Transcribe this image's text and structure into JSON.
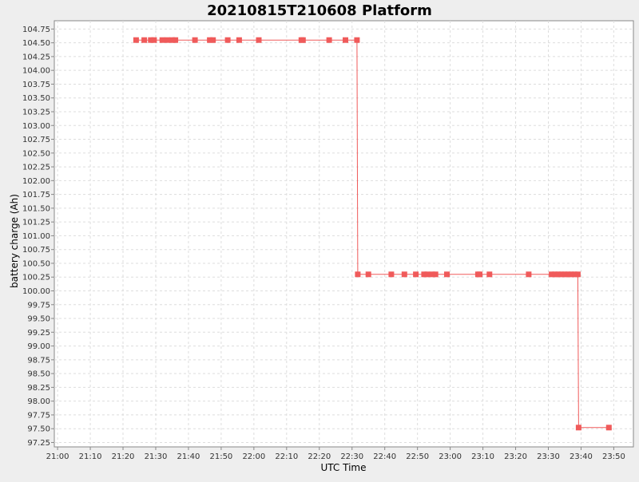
{
  "chart_data": {
    "type": "line",
    "title": "20210815T210608 Platform",
    "xlabel": "UTC Time",
    "ylabel": "battery charge (Ah)",
    "x_ticks": [
      "21:00",
      "21:10",
      "21:20",
      "21:30",
      "21:40",
      "21:50",
      "22:00",
      "22:10",
      "22:20",
      "22:30",
      "22:40",
      "22:50",
      "23:00",
      "23:10",
      "23:20",
      "23:30",
      "23:40",
      "23:50"
    ],
    "y_ticks": [
      "97.25",
      "97.50",
      "97.75",
      "98.00",
      "98.25",
      "98.50",
      "98.75",
      "99.00",
      "99.25",
      "99.50",
      "99.75",
      "100.00",
      "100.25",
      "100.50",
      "100.75",
      "101.00",
      "101.25",
      "101.50",
      "101.75",
      "102.00",
      "102.25",
      "102.50",
      "102.75",
      "103.00",
      "103.25",
      "103.50",
      "103.75",
      "104.00",
      "104.25",
      "104.50",
      "104.75"
    ],
    "xlim": [
      "20:59",
      "23:56"
    ],
    "ylim": [
      97.17,
      104.9
    ],
    "grid": true,
    "series": [
      {
        "name": "",
        "color": "#f05a5a",
        "points": [
          [
            "21:24",
            104.55
          ],
          [
            "21:26:30",
            104.55
          ],
          [
            "21:28:30",
            104.55
          ],
          [
            "21:29:30",
            104.55
          ],
          [
            "21:32",
            104.55
          ],
          [
            "21:33:30",
            104.55
          ],
          [
            "21:35",
            104.55
          ],
          [
            "21:36",
            104.55
          ],
          [
            "21:42",
            104.55
          ],
          [
            "21:46:30",
            104.55
          ],
          [
            "21:47:30",
            104.55
          ],
          [
            "21:52",
            104.55
          ],
          [
            "21:55:30",
            104.55
          ],
          [
            "22:01:30",
            104.55
          ],
          [
            "22:14:30",
            104.55
          ],
          [
            "22:15",
            104.55
          ],
          [
            "22:23",
            104.55
          ],
          [
            "22:28",
            104.55
          ],
          [
            "22:31:30",
            104.55
          ],
          [
            "22:31:45",
            100.3
          ],
          [
            "22:35",
            100.3
          ],
          [
            "22:42",
            100.3
          ],
          [
            "22:46",
            100.3
          ],
          [
            "22:49:30",
            100.3
          ],
          [
            "22:52",
            100.3
          ],
          [
            "22:53",
            100.3
          ],
          [
            "22:54:30",
            100.3
          ],
          [
            "22:55:30",
            100.3
          ],
          [
            "22:59",
            100.3
          ],
          [
            "23:08:30",
            100.3
          ],
          [
            "23:09",
            100.3
          ],
          [
            "23:12",
            100.3
          ],
          [
            "23:24",
            100.3
          ],
          [
            "23:31",
            100.3
          ],
          [
            "23:32",
            100.3
          ],
          [
            "23:33",
            100.3
          ],
          [
            "23:34",
            100.3
          ],
          [
            "23:35",
            100.3
          ],
          [
            "23:36",
            100.3
          ],
          [
            "23:37",
            100.3
          ],
          [
            "23:38",
            100.3
          ],
          [
            "23:39",
            100.3
          ],
          [
            "23:39:15",
            97.52
          ],
          [
            "23:48:30",
            97.52
          ]
        ]
      }
    ]
  }
}
